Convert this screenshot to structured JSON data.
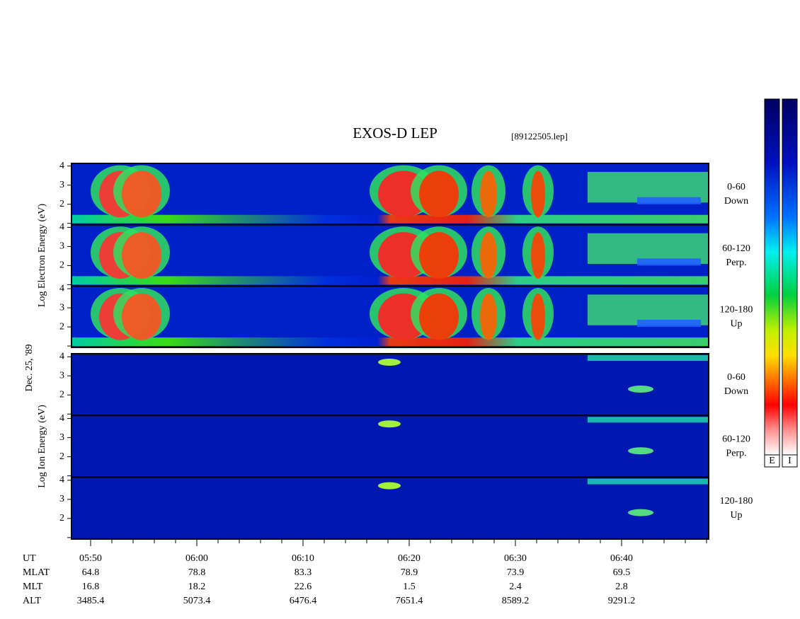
{
  "title": "EXOS-D LEP",
  "file": "[89122505.lep]",
  "date": "Dec. 25, '89",
  "electron": {
    "axis_label": "Log  Electron  Energy  (eV)",
    "panels": [
      {
        "label": [
          "0-60",
          "Down"
        ],
        "yticks": [
          4,
          3,
          2
        ]
      },
      {
        "label": [
          "60-120",
          "Perp."
        ],
        "yticks": [
          4,
          3,
          2
        ]
      },
      {
        "label": [
          "120-180",
          "Up"
        ],
        "yticks": [
          4,
          3,
          2
        ]
      }
    ]
  },
  "ion": {
    "axis_label": "Log  Ion  Energy  (eV)",
    "panels": [
      {
        "label": [
          "0-60",
          "Down"
        ],
        "yticks": [
          4,
          3,
          2
        ]
      },
      {
        "label": [
          "60-120",
          "Perp."
        ],
        "yticks": [
          4,
          3,
          2
        ]
      },
      {
        "label": [
          "120-180",
          "Up"
        ],
        "yticks": [
          4,
          3,
          2
        ]
      }
    ]
  },
  "colorbars": [
    "E",
    "I"
  ],
  "time_axis": {
    "rows": [
      {
        "label": "UT",
        "values": [
          "05:50",
          "06:00",
          "06:10",
          "06:20",
          "06:30",
          "06:40"
        ]
      },
      {
        "label": "MLAT",
        "values": [
          "64.8",
          "78.8",
          "83.3",
          "78.9",
          "73.9",
          "69.5"
        ]
      },
      {
        "label": "MLT",
        "values": [
          "16.8",
          "18.2",
          "22.6",
          "1.5",
          "2.4",
          "2.8"
        ]
      },
      {
        "label": "ALT",
        "values": [
          "3485.4",
          "5073.4",
          "6476.4",
          "7651.4",
          "8589.2",
          "9291.2"
        ]
      }
    ]
  }
}
